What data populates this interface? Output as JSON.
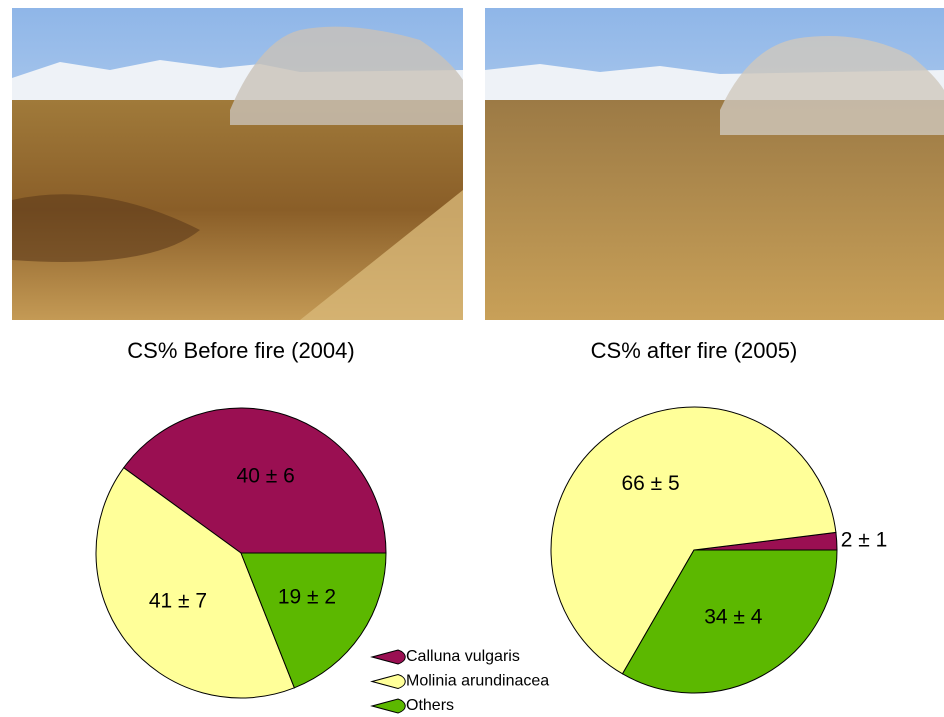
{
  "chart_data": [
    {
      "type": "pie",
      "title": "CS% Before fire (2004)",
      "categories": [
        "Calluna vulgaris",
        "Molinia arundinacea",
        "Others"
      ],
      "values": [
        40,
        41,
        19
      ],
      "value_labels": [
        "40 ± 6",
        "41 ± 7",
        "19 ± 2"
      ],
      "colors": [
        "#9a0f52",
        "#ffff99",
        "#5cb800"
      ]
    },
    {
      "type": "pie",
      "title": "CS% after fire (2005)",
      "values": [
        2,
        66,
        34
      ],
      "value_labels": [
        "2 ± 1",
        "66 ± 5",
        "34 ± 4"
      ],
      "colors": [
        "#9a0f52",
        "#ffff99",
        "#5cb800"
      ]
    }
  ]
}
